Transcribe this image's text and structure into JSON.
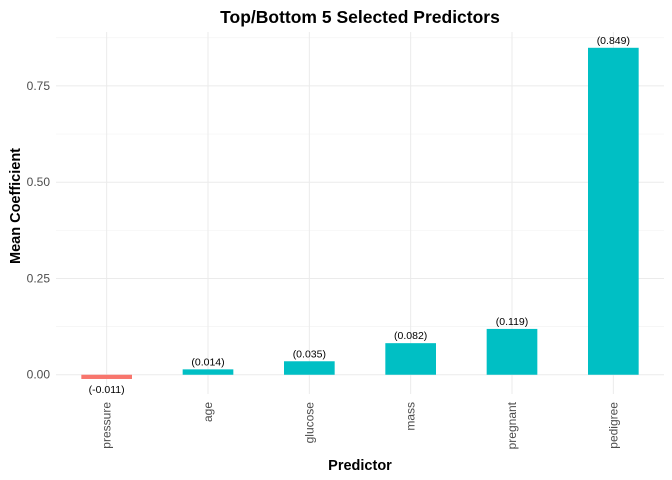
{
  "chart_data": {
    "type": "bar",
    "title": "Top/Bottom 5 Selected Predictors",
    "xlabel": "Predictor",
    "ylabel": "Mean Coefficient",
    "categories": [
      "pressure",
      "age",
      "glucose",
      "mass",
      "pregnant",
      "pedigree"
    ],
    "values": [
      -0.011,
      0.014,
      0.035,
      0.082,
      0.119,
      0.849
    ],
    "data_labels": [
      "(-0.011)",
      "(0.014)",
      "(0.035)",
      "(0.082)",
      "(0.119)",
      "(0.849)"
    ],
    "y_ticks": [
      0,
      0.25,
      0.5,
      0.75
    ],
    "y_tick_labels": [
      "0.00",
      "0.25",
      "0.50",
      "0.75"
    ],
    "ylim": [
      -0.05,
      0.89
    ],
    "grid": true,
    "legend": "none",
    "colors": {
      "positive": "#00BFC4",
      "negative": "#F8766D"
    }
  }
}
